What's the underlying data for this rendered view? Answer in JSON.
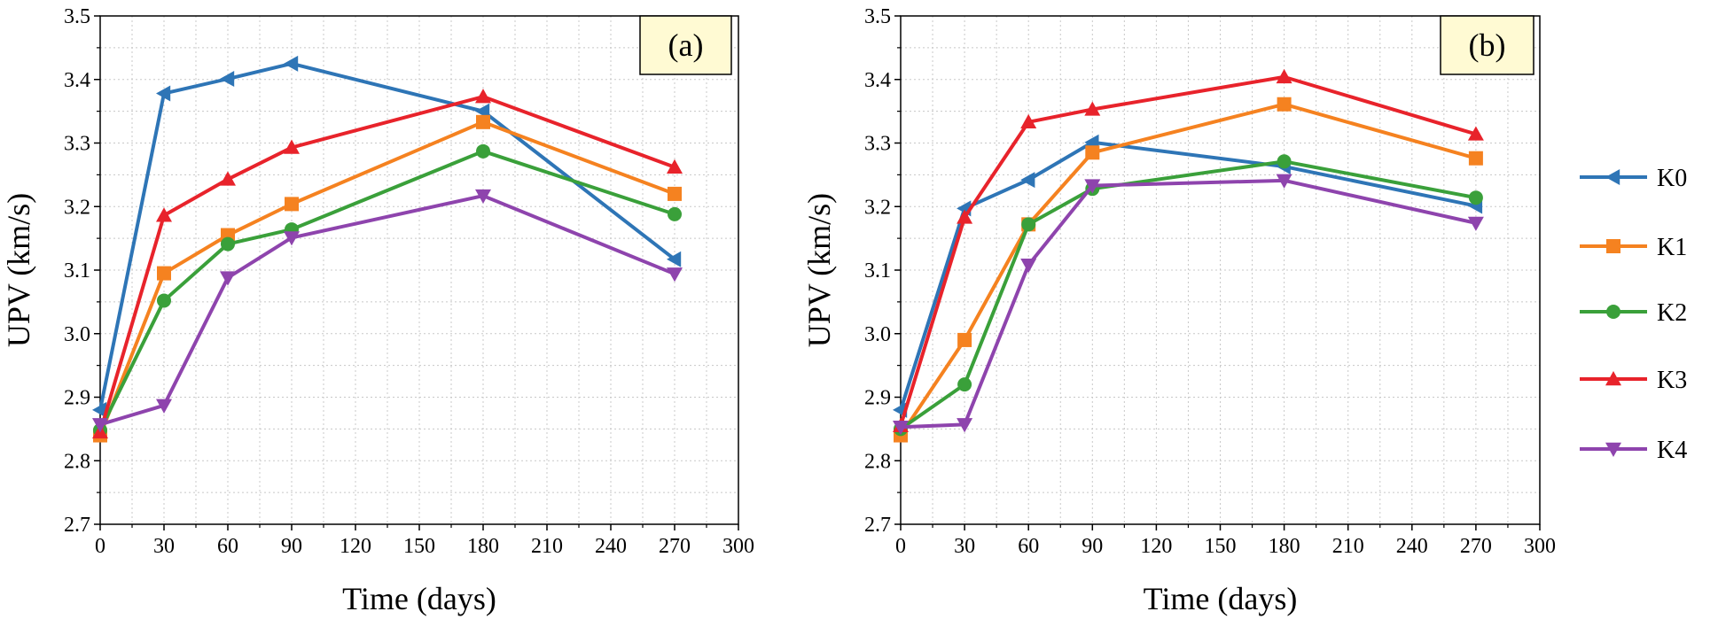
{
  "figure": {
    "legend_position": "right",
    "series_style": [
      {
        "name": "K0",
        "color": "#2e75b6",
        "marker": "triangle-left"
      },
      {
        "name": "K1",
        "color": "#f58220",
        "marker": "square"
      },
      {
        "name": "K2",
        "color": "#3aa03a",
        "marker": "circle"
      },
      {
        "name": "K3",
        "color": "#e8232b",
        "marker": "triangle-up"
      },
      {
        "name": "K4",
        "color": "#8e44ad",
        "marker": "triangle-down"
      }
    ]
  },
  "chart_data": [
    {
      "type": "line",
      "panel_label": "(a)",
      "xlabel": "Time (days)",
      "ylabel": "UPV (km/s)",
      "xlim": [
        0,
        300
      ],
      "ylim": [
        2.7,
        3.5
      ],
      "xticks": [
        "0",
        "30",
        "60",
        "90",
        "120",
        "150",
        "180",
        "210",
        "240",
        "270",
        "300"
      ],
      "yticks": [
        "2.7",
        "2.8",
        "2.9",
        "3.0",
        "3.1",
        "3.2",
        "3.3",
        "3.4",
        "3.5"
      ],
      "grid": true,
      "x": [
        0,
        30,
        60,
        90,
        180,
        270
      ],
      "series": [
        {
          "name": "K0",
          "values": [
            2.88,
            3.378,
            3.401,
            3.425,
            3.35,
            3.117
          ]
        },
        {
          "name": "K1",
          "values": [
            2.84,
            3.095,
            3.155,
            3.204,
            3.333,
            3.22
          ]
        },
        {
          "name": "K2",
          "values": [
            2.848,
            3.052,
            3.141,
            3.164,
            3.287,
            3.188
          ]
        },
        {
          "name": "K3",
          "values": [
            2.845,
            3.186,
            3.243,
            3.293,
            3.373,
            3.262
          ]
        },
        {
          "name": "K4",
          "values": [
            2.857,
            2.887,
            3.088,
            3.151,
            3.217,
            3.094
          ]
        }
      ]
    },
    {
      "type": "line",
      "panel_label": "(b)",
      "xlabel": "Time (days)",
      "ylabel": "UPV (km/s)",
      "xlim": [
        0,
        300
      ],
      "ylim": [
        2.7,
        3.5
      ],
      "xticks": [
        "0",
        "30",
        "60",
        "90",
        "120",
        "150",
        "180",
        "210",
        "240",
        "270",
        "300"
      ],
      "yticks": [
        "2.7",
        "2.8",
        "2.9",
        "3.0",
        "3.1",
        "3.2",
        "3.3",
        "3.4",
        "3.5"
      ],
      "grid": true,
      "x": [
        0,
        30,
        60,
        90,
        180,
        270
      ],
      "series": [
        {
          "name": "K0",
          "values": [
            2.88,
            3.197,
            3.242,
            3.301,
            3.263,
            3.201
          ]
        },
        {
          "name": "K1",
          "values": [
            2.84,
            2.99,
            3.172,
            3.285,
            3.361,
            3.276
          ]
        },
        {
          "name": "K2",
          "values": [
            2.85,
            2.92,
            3.172,
            3.228,
            3.271,
            3.214
          ]
        },
        {
          "name": "K3",
          "values": [
            2.855,
            3.183,
            3.333,
            3.353,
            3.404,
            3.314
          ]
        },
        {
          "name": "K4",
          "values": [
            2.853,
            2.857,
            3.108,
            3.233,
            3.241,
            3.174
          ]
        }
      ]
    }
  ]
}
